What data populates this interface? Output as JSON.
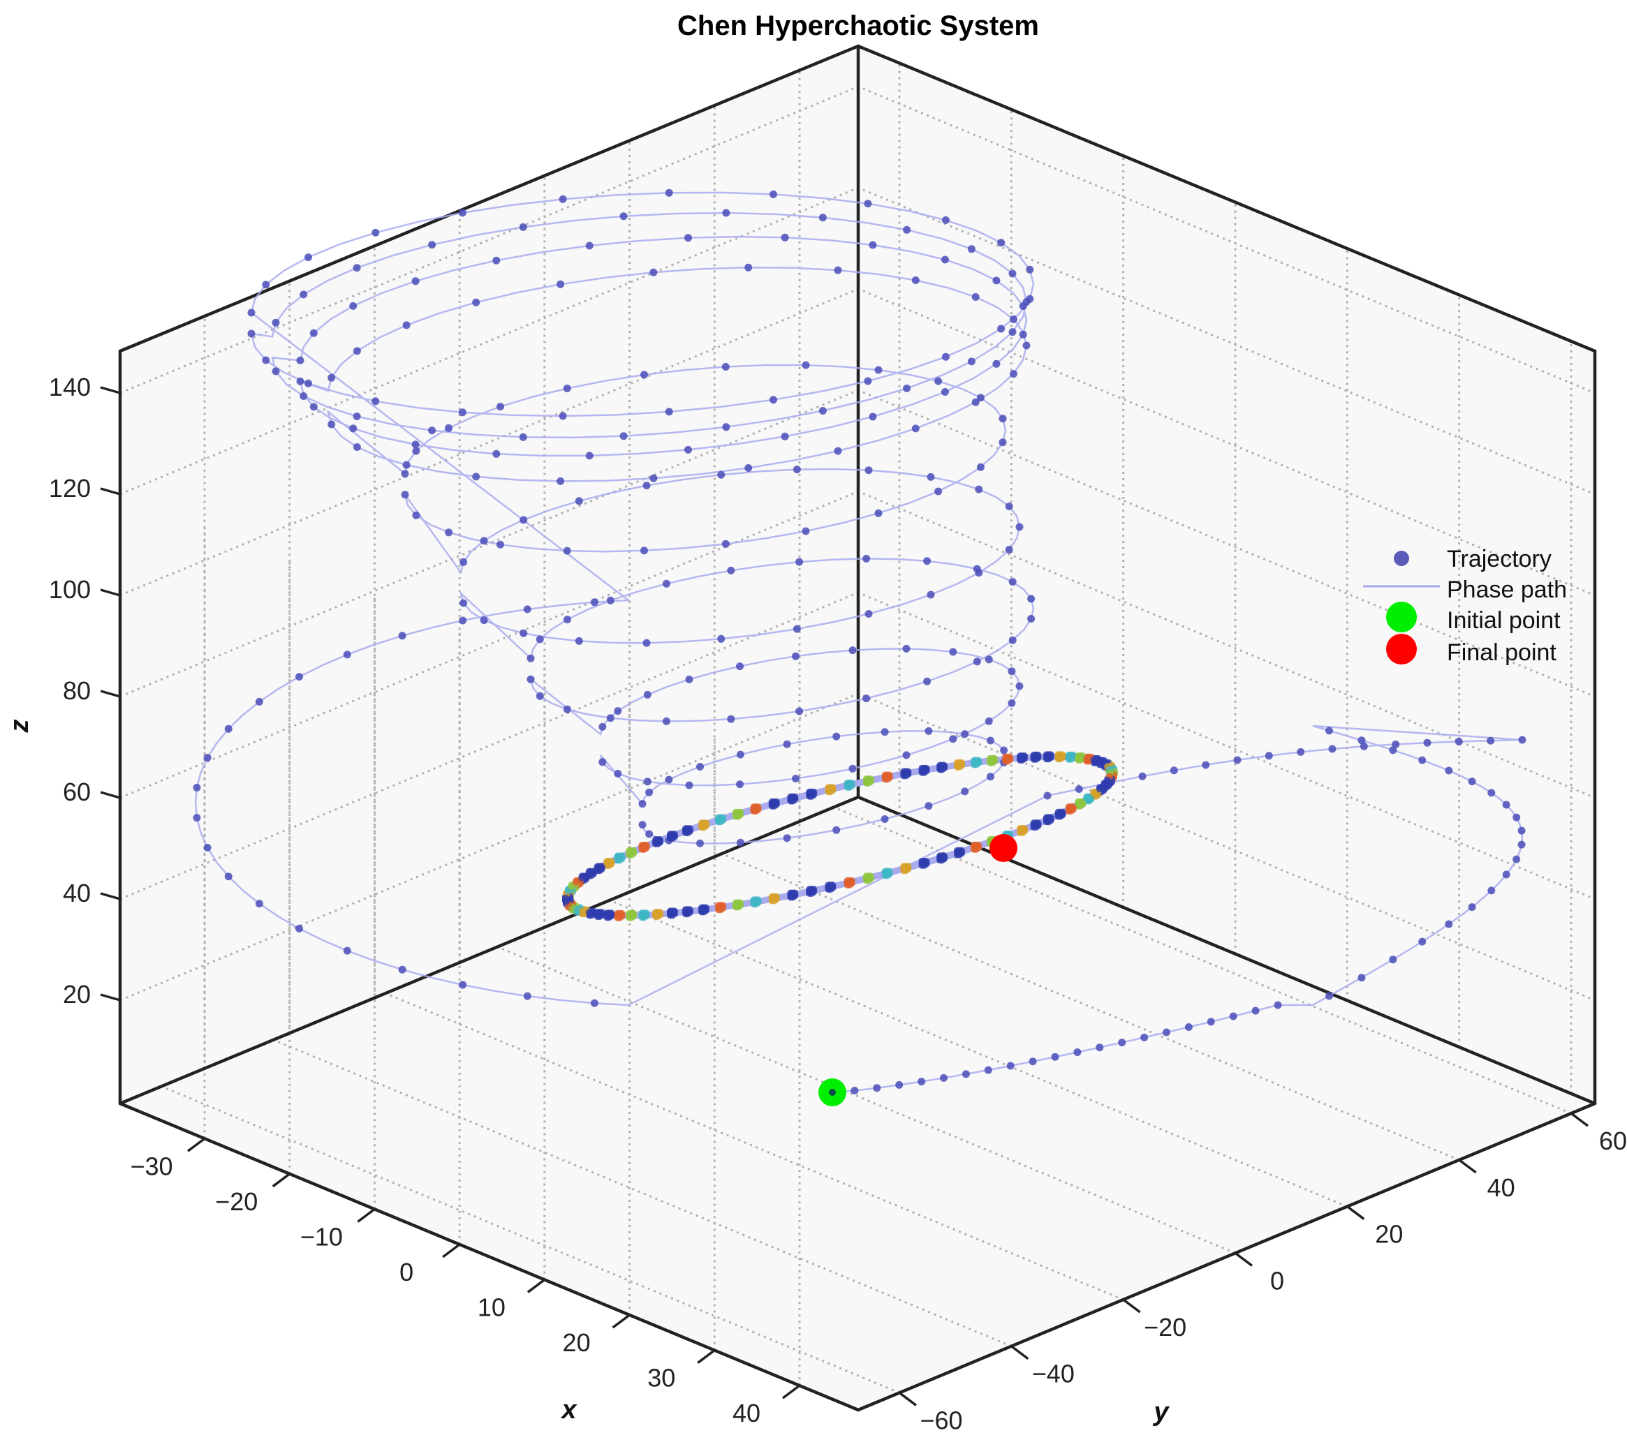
{
  "chart_data": {
    "type": "scatter",
    "subtype": "3d-scatter-with-line",
    "title": "Chen Hyperchaotic System",
    "xlabel": "x",
    "ylabel": "y",
    "zlabel": "z",
    "x_ticks": [
      "−30",
      "−20",
      "−10",
      "0",
      "10",
      "20",
      "30",
      "40"
    ],
    "y_ticks": [
      "−60",
      "−40",
      "−20",
      "0",
      "20",
      "40",
      "60"
    ],
    "z_ticks": [
      "20",
      "40",
      "60",
      "80",
      "100",
      "120",
      "140"
    ],
    "xlim": [
      -35,
      42
    ],
    "ylim": [
      -66,
      66
    ],
    "zlim": [
      0,
      150
    ],
    "grid": true,
    "legend_position": "right",
    "legend": [
      {
        "label": "Trajectory",
        "kind": "dot",
        "color": "#5a5cb8"
      },
      {
        "label": "Phase path",
        "kind": "line",
        "color": "#a6a8ee"
      },
      {
        "label": "Initial point",
        "kind": "marker",
        "color": "#00ee00"
      },
      {
        "label": "Final point",
        "kind": "marker",
        "color": "#ff0000"
      }
    ],
    "series": [
      {
        "name": "Trajectory",
        "style": "dots",
        "color": "#4a4db8"
      },
      {
        "name": "Phase path",
        "style": "line",
        "color": "#a9abee"
      }
    ],
    "initial_point": {
      "approx_z": 0,
      "note": "near bottom of cube, front"
    },
    "final_point": {
      "approx_z": 48,
      "note": "on the dense attractor loop"
    },
    "attractor_description": "Trajectory spirals from high z (~140) down toward a dense loop near z~45-60, with a large excursion loop at right reaching back to the initial point",
    "spiral_rings_screen": [
      {
        "cx": 920,
        "cy": 420,
        "rx": 560,
        "ry": 150,
        "tilt": 0.05
      },
      {
        "cx": 930,
        "cy": 450,
        "rx": 540,
        "ry": 150,
        "tilt": 0.06
      },
      {
        "cx": 950,
        "cy": 480,
        "rx": 520,
        "ry": 145,
        "tilt": 0.07
      },
      {
        "cx": 970,
        "cy": 520,
        "rx": 500,
        "ry": 140,
        "tilt": 0.08
      },
      {
        "cx": 1010,
        "cy": 640,
        "rx": 430,
        "ry": 120,
        "tilt": 0.09
      },
      {
        "cx": 1060,
        "cy": 780,
        "rx": 400,
        "ry": 110,
        "tilt": 0.1
      },
      {
        "cx": 1120,
        "cy": 900,
        "rx": 360,
        "ry": 100,
        "tilt": 0.12
      },
      {
        "cx": 1160,
        "cy": 1010,
        "rx": 300,
        "ry": 80,
        "tilt": 0.14
      },
      {
        "cx": 1180,
        "cy": 1110,
        "rx": 260,
        "ry": 60,
        "tilt": 0.16
      }
    ]
  },
  "colors": {
    "dot": "#4a4db8",
    "path": "#a9abee",
    "initial": "#00ee00",
    "final": "#ff0000",
    "grid": "#b0b0b0",
    "pane": "#f8f8f8"
  }
}
